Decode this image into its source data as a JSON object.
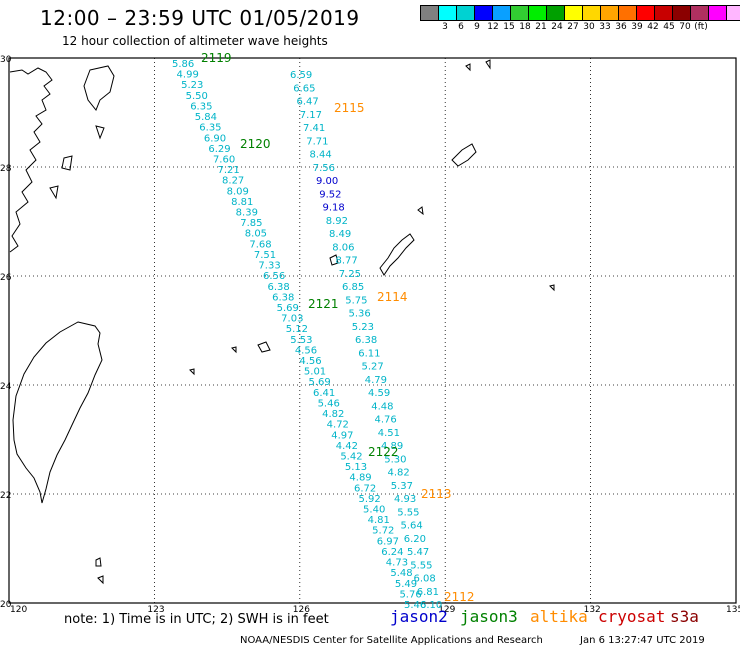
{
  "header": {
    "title": "12:00 – 23:59 UTC 01/05/2019",
    "subtitle": "12 hour collection of altimeter wave heights"
  },
  "scale": {
    "colors": [
      "#808080",
      "#00ffff",
      "#00d2d2",
      "#0000ff",
      "#0aa0ff",
      "#32cd32",
      "#00ee00",
      "#00a000",
      "#ffff00",
      "#ffd700",
      "#ffa500",
      "#ff7000",
      "#ff0000",
      "#c80000",
      "#8b0000",
      "#b03060",
      "#ff00ff",
      "#ffb6ff",
      "#000000"
    ],
    "labels": [
      "3",
      "6",
      "9",
      "12",
      "15",
      "18",
      "21",
      "24",
      "27",
      "30",
      "33",
      "36",
      "39",
      "42",
      "45",
      "70",
      "(ft)"
    ],
    "label_pos": [
      1,
      2,
      3,
      4,
      5,
      6,
      7,
      8,
      9,
      10,
      11,
      12,
      13,
      14,
      15,
      16,
      17
    ]
  },
  "map": {
    "lon_labels": [
      "120",
      "123",
      "126",
      "129",
      "132",
      "135"
    ],
    "lat_labels": [
      "30",
      "28",
      "26",
      "24",
      "22",
      "20"
    ],
    "lon_range": [
      120,
      135
    ],
    "lat_range": [
      20,
      30
    ]
  },
  "chart_data": {
    "type": "scatter",
    "note": "",
    "tracks": [
      {
        "id": "2119",
        "satellite": "jason3",
        "color": "#008000",
        "values": [
          "5.86",
          "4.99",
          "5.23",
          "5.50",
          "6.35",
          "5.84",
          "6.35",
          "6.90",
          "6.29",
          "7.60",
          "7.21",
          "8.27",
          "8.09",
          "8.81",
          "8.39",
          "7.85",
          "8.05",
          "7.68",
          "7.51",
          "7.33",
          "6.56",
          "6.38",
          "6.38",
          "5.69",
          "7.03",
          "5.12",
          "5.53",
          "4.56",
          "4.56",
          "5.01",
          "5.69",
          "6.41",
          "5.46",
          "4.82",
          "4.72",
          "4.97",
          "4.42",
          "5.42",
          "5.13",
          "4.89",
          "6.72",
          "5.92",
          "5.40",
          "4.81",
          "5.72",
          "6.97",
          "6.24",
          "4.73",
          "5.48",
          "5.49",
          "5.76",
          "5.46"
        ]
      },
      {
        "id": "2115",
        "satellite": "altika",
        "color": "#ff8c00",
        "values": [
          "6.59",
          "6.65",
          "6.47",
          "7.17",
          "7.41",
          "7.71",
          "8.44",
          "7.56",
          "9.00",
          "9.52",
          "9.18",
          "8.92",
          "8.49",
          "8.06",
          "8.77",
          "7.25",
          "6.85",
          "5.75",
          "5.36",
          "5.23",
          "6.38",
          "6.11",
          "5.27",
          "4.79",
          "4.59",
          "4.48",
          "4.76",
          "4.51",
          "4.89",
          "5.30",
          "4.82",
          "5.37",
          "4.93",
          "5.55",
          "5.64",
          "6.20",
          "5.47",
          "5.55",
          "6.08",
          "6.81",
          "6.10"
        ]
      }
    ],
    "track_labels": [
      {
        "id": "2119",
        "text": "2119",
        "color": "#008000"
      },
      {
        "id": "2120",
        "text": "2120",
        "color": "#008000"
      },
      {
        "id": "2121",
        "text": "2121",
        "color": "#008000"
      },
      {
        "id": "2122",
        "text": "2122",
        "color": "#008000"
      },
      {
        "id": "2115",
        "text": "2115",
        "color": "#ff8c00"
      },
      {
        "id": "2114",
        "text": "2114",
        "color": "#ff8c00"
      },
      {
        "id": "2113",
        "text": "2113",
        "color": "#ff8c00"
      },
      {
        "id": "2112",
        "text": "2112",
        "color": "#ff8c00"
      }
    ]
  },
  "footer": {
    "note": "note: 1) Time is in UTC; 2) SWH is in feet",
    "credit": "NOAA/NESDIS Center for Satellite Applications and Research",
    "timestamp": "Jan  6 13:27:47 UTC 2019",
    "legend": [
      {
        "name": "jason2",
        "color": "#0000cc"
      },
      {
        "name": "jason3",
        "color": "#008000"
      },
      {
        "name": "altika",
        "color": "#ff8c00"
      },
      {
        "name": "cryosat",
        "color": "#cc0000"
      },
      {
        "name": "s3a",
        "color": "#8b0000"
      }
    ]
  }
}
